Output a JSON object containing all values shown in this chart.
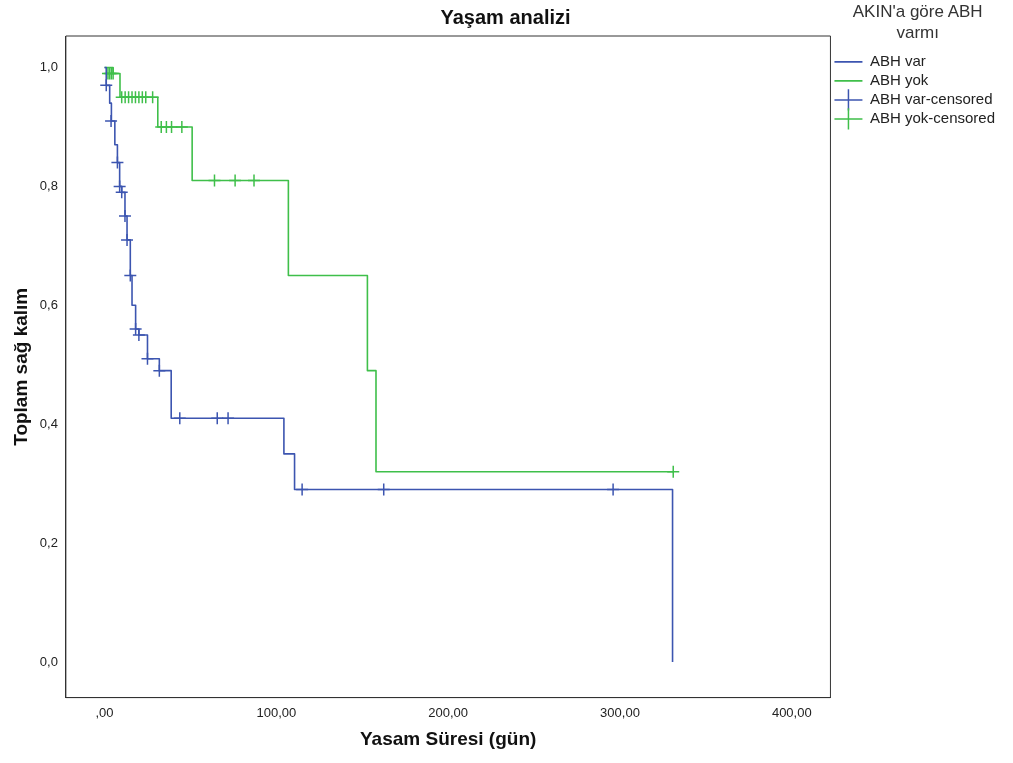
{
  "chart_data": {
    "type": "step",
    "title": "Yaşam analizi",
    "xlabel": "Yasam Süresi (gün)",
    "ylabel": "Toplam sağ kalım",
    "legend_title": "AKIN'a göre ABH varmı",
    "legend": "right",
    "grid": false,
    "xlim": [
      -22.5,
      422.5
    ],
    "ylim": [
      -0.06,
      1.053
    ],
    "xticks": [
      {
        "value": 0,
        "label": ",00"
      },
      {
        "value": 100,
        "label": "100,00"
      },
      {
        "value": 200,
        "label": "200,00"
      },
      {
        "value": 300,
        "label": "300,00"
      },
      {
        "value": 400,
        "label": "400,00"
      }
    ],
    "yticks": [
      {
        "value": 0,
        "label": "0,0"
      },
      {
        "value": 0.2,
        "label": "0,2"
      },
      {
        "value": 0.4,
        "label": "0,4"
      },
      {
        "value": 0.6,
        "label": "0,6"
      },
      {
        "value": 0.8,
        "label": "0,8"
      },
      {
        "value": 1,
        "label": "1,0"
      }
    ],
    "series": [
      {
        "name": "ABH var",
        "type": "step",
        "color": "#3c55b0",
        "marker": "none",
        "x": [
          0,
          1,
          3,
          4,
          6,
          7.5,
          8.8,
          10,
          11.9,
          13.1,
          15,
          16,
          18.1,
          20,
          25,
          31.9,
          38.8,
          104.4,
          110.6,
          330.6,
          330.6
        ],
        "values": [
          1,
          0.97,
          0.94,
          0.91,
          0.87,
          0.84,
          0.8,
          0.79,
          0.75,
          0.71,
          0.65,
          0.6,
          0.56,
          0.55,
          0.51,
          0.49,
          0.41,
          0.35,
          0.29,
          0.29,
          0
        ]
      },
      {
        "name": "ABH yok",
        "type": "step",
        "color": "#3fbf4a",
        "marker": "none",
        "x": [
          0,
          5,
          9,
          31,
          51,
          107,
          153,
          158,
          331
        ],
        "values": [
          1,
          0.99,
          0.95,
          0.9,
          0.81,
          0.65,
          0.49,
          0.32,
          0.32
        ]
      },
      {
        "name": "ABH var-censored",
        "type": "scatter",
        "color": "#3c55b0",
        "marker": "cross",
        "x": [
          1,
          3.8,
          7.5,
          8.8,
          10,
          11.9,
          13.1,
          15,
          18.1,
          20,
          25,
          31.9,
          43.8,
          65.6,
          71.9,
          115,
          162.5,
          296
        ],
        "values": [
          0.97,
          0.91,
          0.84,
          0.8,
          0.79,
          0.75,
          0.71,
          0.65,
          0.56,
          0.55,
          0.51,
          0.49,
          0.41,
          0.41,
          0.41,
          0.29,
          0.29,
          0.29
        ]
      },
      {
        "name": "ABH yok-censored",
        "type": "scatter",
        "color": "#3fbf4a",
        "marker": "cross",
        "x": [
          2,
          3,
          4,
          5,
          10,
          12,
          14,
          16,
          18,
          20,
          22,
          24,
          28,
          33,
          36,
          39,
          45,
          64,
          76,
          87,
          331
        ],
        "values": [
          0.99,
          0.99,
          0.99,
          0.99,
          0.95,
          0.95,
          0.95,
          0.95,
          0.95,
          0.95,
          0.95,
          0.95,
          0.95,
          0.9,
          0.9,
          0.9,
          0.9,
          0.81,
          0.81,
          0.81,
          0.32
        ]
      }
    ]
  }
}
